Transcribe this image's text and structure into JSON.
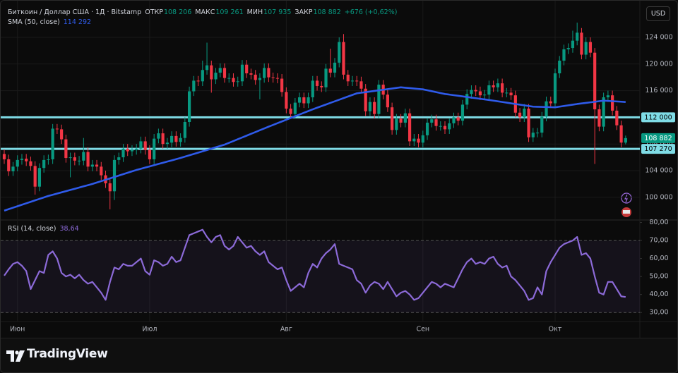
{
  "chart_data": [
    {
      "type": "candlestick",
      "title": "Биткоин / Доллар США · 1Д · Bitstamp",
      "currency": "USD",
      "ohlc_legend": [
        {
          "label": "ОТКР",
          "value": "108 206"
        },
        {
          "label": "МАКС",
          "value": "109 261"
        },
        {
          "label": "МИН",
          "value": "107 935"
        },
        {
          "label": "ЗАКР",
          "value": "108 882"
        }
      ],
      "change": "+676 (+0,62%)",
      "up_color": "#089981",
      "down_color": "#f23645",
      "categories": [
        null,
        null,
        null,
        "Июн",
        null,
        null,
        null,
        null,
        null,
        null,
        null,
        null,
        null,
        null,
        null,
        null,
        null,
        null,
        null,
        null,
        null,
        null,
        null,
        null,
        null,
        null,
        null,
        null,
        null,
        null,
        null,
        null,
        null,
        "Июл",
        null,
        null,
        null,
        null,
        null,
        null,
        null,
        null,
        null,
        null,
        null,
        null,
        null,
        null,
        null,
        null,
        null,
        null,
        null,
        null,
        null,
        null,
        null,
        null,
        null,
        null,
        null,
        null,
        null,
        null,
        "Авг",
        null,
        null,
        null,
        null,
        null,
        null,
        null,
        null,
        null,
        null,
        null,
        null,
        null,
        null,
        null,
        null,
        null,
        null,
        null,
        null,
        null,
        null,
        null,
        null,
        null,
        null,
        null,
        null,
        null,
        null,
        "Сен",
        null,
        null,
        null,
        null,
        null,
        null,
        null,
        null,
        null,
        null,
        null,
        null,
        null,
        null,
        null,
        null,
        null,
        null,
        null,
        null,
        null,
        null,
        null,
        null,
        null,
        null,
        null,
        null,
        null,
        "Окт",
        null,
        null,
        null,
        null,
        null,
        null,
        null,
        null,
        null,
        null,
        null,
        null,
        null,
        null,
        null,
        null
      ],
      "open": [
        106500,
        105700,
        103900,
        104600,
        105600,
        105800,
        105400,
        104700,
        101600,
        104400,
        105600,
        105700,
        110300,
        110200,
        108700,
        105900,
        106000,
        105500,
        105500,
        106800,
        104600,
        104900,
        104600,
        103300,
        102100,
        100900,
        105600,
        106000,
        107300,
        106900,
        107100,
        107300,
        108400,
        107100,
        105700,
        108800,
        109600,
        108000,
        108200,
        109200,
        108300,
        108900,
        111300,
        115900,
        117500,
        117400,
        119100,
        119800,
        117700,
        118700,
        119400,
        117900,
        117900,
        117300,
        117400,
        119900,
        118600,
        118400,
        117600,
        117900,
        119400,
        118000,
        117900,
        117800,
        115800,
        113300,
        112500,
        114200,
        115000,
        114100,
        115000,
        117500,
        116700,
        116500,
        119300,
        118700,
        120200,
        123300,
        118400,
        117400,
        117500,
        117400,
        116300,
        112900,
        114300,
        112500,
        116900,
        115400,
        113500,
        110100,
        111800,
        111200,
        112600,
        108400,
        108800,
        108200,
        109300,
        111200,
        111700,
        110700,
        110700,
        110200,
        111100,
        112000,
        111500,
        113900,
        115500,
        116100,
        115900,
        115300,
        115400,
        116800,
        116500,
        117100,
        115700,
        115700,
        115300,
        112700,
        112000,
        113300,
        109000,
        109700,
        109700,
        112100,
        114400,
        114100,
        118600,
        120500,
        122200,
        122400,
        123500,
        124700,
        121400,
        123300,
        121700,
        113200,
        110600,
        115000,
        115300,
        113000,
        110800,
        108206
      ],
      "high": [
        107200,
        106400,
        105300,
        106300,
        106500,
        106500,
        106100,
        105400,
        105100,
        106300,
        106400,
        111000,
        111000,
        110900,
        109400,
        106700,
        106700,
        106200,
        108900,
        107500,
        105600,
        105600,
        105300,
        104000,
        102800,
        106300,
        106700,
        108000,
        108000,
        107800,
        108000,
        109100,
        109100,
        107800,
        109500,
        110300,
        110300,
        108900,
        109900,
        109900,
        109600,
        112000,
        116600,
        118200,
        118200,
        120500,
        123200,
        120500,
        119400,
        120100,
        120100,
        118600,
        118600,
        118100,
        120600,
        120600,
        119300,
        119100,
        118600,
        120100,
        120100,
        118700,
        118600,
        118500,
        116500,
        114000,
        114900,
        115700,
        115700,
        115700,
        118200,
        118200,
        117400,
        120000,
        122300,
        120900,
        124000,
        124500,
        119100,
        118200,
        118200,
        118100,
        117000,
        115000,
        115000,
        117600,
        117600,
        116100,
        114200,
        112500,
        112500,
        113300,
        113300,
        109500,
        109500,
        110000,
        111900,
        112400,
        112400,
        111400,
        111400,
        111800,
        112700,
        112700,
        114600,
        116200,
        116800,
        116800,
        116600,
        116100,
        117500,
        117500,
        117800,
        117800,
        116400,
        116400,
        116000,
        113400,
        114000,
        114000,
        110400,
        110400,
        112800,
        115100,
        115100,
        119300,
        121200,
        122900,
        123100,
        125000,
        126200,
        125400,
        124000,
        124000,
        122400,
        113900,
        115700,
        116000,
        116000,
        113700,
        111500,
        109261
      ],
      "low": [
        105000,
        103200,
        103200,
        103900,
        104900,
        104700,
        104000,
        100400,
        100900,
        103700,
        104900,
        105000,
        109500,
        108000,
        105200,
        103000,
        104800,
        104800,
        104800,
        103900,
        103900,
        103900,
        102600,
        101400,
        98200,
        99600,
        104900,
        105300,
        106200,
        106200,
        106400,
        106600,
        106400,
        105000,
        105000,
        108100,
        107300,
        107300,
        107500,
        107600,
        107600,
        108200,
        110600,
        115200,
        116700,
        116700,
        118400,
        115700,
        117000,
        118000,
        117200,
        117200,
        116600,
        116600,
        116700,
        117900,
        117700,
        116900,
        114700,
        117200,
        117300,
        117200,
        117100,
        115100,
        112600,
        111800,
        111800,
        113500,
        113400,
        113400,
        114300,
        116000,
        115800,
        115800,
        118000,
        118000,
        119500,
        117700,
        116700,
        116700,
        116700,
        115600,
        112200,
        112200,
        111800,
        111800,
        114700,
        112800,
        109400,
        109400,
        110500,
        110500,
        107700,
        107700,
        107500,
        107500,
        108600,
        110500,
        110000,
        110000,
        109500,
        109500,
        110400,
        110800,
        110800,
        113200,
        114800,
        115200,
        114600,
        114600,
        114700,
        115800,
        115800,
        115000,
        115000,
        114600,
        112000,
        111300,
        111300,
        108300,
        108300,
        109000,
        109000,
        111400,
        113400,
        113400,
        117900,
        119800,
        121500,
        121700,
        122800,
        120700,
        120700,
        121000,
        105000,
        109900,
        109900,
        114300,
        112300,
        110100,
        107500,
        107935
      ],
      "close": [
        105700,
        103900,
        104600,
        105600,
        105800,
        105400,
        104700,
        101600,
        104400,
        105600,
        105700,
        110300,
        110200,
        108700,
        105900,
        106000,
        105500,
        105500,
        106800,
        104600,
        104900,
        104600,
        103300,
        102100,
        100900,
        105600,
        106000,
        107300,
        106900,
        107100,
        107300,
        108400,
        107100,
        105700,
        108800,
        109600,
        108000,
        108200,
        109200,
        108300,
        108900,
        111300,
        115900,
        117500,
        117400,
        119100,
        119800,
        117700,
        118700,
        119400,
        117900,
        117900,
        117300,
        117400,
        119900,
        118600,
        118400,
        117600,
        117900,
        119400,
        118000,
        117900,
        117800,
        115800,
        113300,
        112500,
        114200,
        115000,
        114100,
        115000,
        117500,
        116700,
        116500,
        119300,
        118700,
        120200,
        123300,
        118400,
        117400,
        117500,
        117400,
        116300,
        112900,
        114300,
        112500,
        116900,
        115400,
        113500,
        110100,
        111800,
        111200,
        112600,
        108400,
        108800,
        108200,
        109300,
        111200,
        111700,
        110700,
        110700,
        110200,
        111100,
        112000,
        111500,
        113900,
        115500,
        116100,
        115900,
        115300,
        115400,
        116800,
        116500,
        117100,
        115700,
        115700,
        115300,
        112700,
        112000,
        113300,
        109000,
        109700,
        109700,
        112100,
        114400,
        114100,
        118600,
        120500,
        122200,
        122400,
        123500,
        124700,
        121400,
        123300,
        121700,
        113200,
        110600,
        115000,
        115300,
        113000,
        110800,
        108206,
        108882
      ],
      "overlays": [
        {
          "name": "SMA (50, close)",
          "color": "#2f5bea",
          "value_label": "114 292",
          "values": [
            98000,
            98220,
            98440,
            98660,
            98880,
            99100,
            99320,
            99540,
            99760,
            99980,
            100200,
            100380,
            100560,
            100740,
            100920,
            101100,
            101280,
            101460,
            101640,
            101820,
            102000,
            102210,
            102420,
            102630,
            102840,
            103050,
            103260,
            103470,
            103680,
            103890,
            104100,
            104280,
            104460,
            104640,
            104820,
            105000,
            105180,
            105360,
            105540,
            105720,
            105900,
            106100,
            106300,
            106500,
            106700,
            106900,
            107100,
            107300,
            107500,
            107700,
            107900,
            108170,
            108440,
            108710,
            108980,
            109250,
            109520,
            109790,
            110060,
            110330,
            110600,
            110860,
            111120,
            111380,
            111640,
            111900,
            112160,
            112420,
            112680,
            112940,
            113200,
            113440,
            113680,
            113920,
            114160,
            114400,
            114640,
            114880,
            115120,
            115360,
            115600,
            115690,
            115780,
            115870,
            115960,
            116050,
            116140,
            116230,
            116320,
            116410,
            116500,
            116440,
            116380,
            116320,
            116260,
            116200,
            116060,
            115920,
            115780,
            115640,
            115500,
            115410,
            115320,
            115230,
            115140,
            115050,
            114960,
            114870,
            114780,
            114690,
            114600,
            114500,
            114400,
            114300,
            114200,
            114100,
            114000,
            113900,
            113800,
            113700,
            113600,
            113580,
            113560,
            113540,
            113520,
            113500,
            113600,
            113700,
            113800,
            113900,
            114000,
            114080,
            114160,
            114250,
            114330,
            114420,
            114500,
            114460,
            114420,
            114380,
            114340,
            114292
          ]
        }
      ],
      "hlines": [
        {
          "value": 112000,
          "label": "112 000",
          "color": "#7fdce6"
        },
        {
          "value": 107270,
          "label": "107 270",
          "color": "#7fdce6"
        }
      ],
      "price_tag": {
        "value": 108882,
        "label": "108 882"
      },
      "ylim": [
        96700,
        128650
      ],
      "yticks": [
        {
          "value": 100000,
          "label": "100 000"
        },
        {
          "value": 104000,
          "label": "104 000"
        },
        {
          "value": 108000,
          "label": "108 000"
        },
        {
          "value": 112000,
          "label": "112 000"
        },
        {
          "value": 116000,
          "label": "116 000"
        },
        {
          "value": 120000,
          "label": "120 000"
        },
        {
          "value": 124000,
          "label": "124 000"
        }
      ],
      "grid": true
    },
    {
      "type": "line",
      "title": "RSI (14, close)",
      "value_label": "38,64",
      "series": [
        {
          "name": "RSI (14, close)",
          "color": "#8c6ad8",
          "values": [
            50.5,
            54,
            57,
            58,
            56,
            53,
            43,
            48,
            53,
            52,
            62,
            64,
            60,
            52,
            50,
            51,
            49,
            51,
            48,
            46,
            47,
            44,
            41,
            37,
            47,
            55,
            54,
            57,
            56,
            56,
            58,
            60,
            53,
            51,
            59,
            58,
            56,
            57,
            61,
            58,
            59,
            66,
            73,
            74,
            75,
            76,
            72,
            69,
            72,
            73,
            67,
            65,
            67,
            72,
            69,
            66,
            67,
            64,
            62,
            64,
            58,
            56,
            54,
            55,
            48,
            42,
            44,
            46,
            44,
            52,
            57,
            55,
            60,
            63,
            65,
            68,
            57,
            56,
            55,
            54,
            48,
            46,
            41,
            45,
            47,
            46,
            43,
            47,
            43,
            39,
            41,
            42,
            40,
            37,
            38,
            41,
            44,
            47,
            46,
            44,
            46,
            45,
            44,
            49,
            54,
            58,
            60,
            57,
            58,
            57,
            60,
            61,
            57,
            55,
            56,
            50,
            48,
            45,
            42,
            37,
            38,
            44,
            40,
            53,
            58,
            62,
            66,
            68,
            69,
            70,
            72,
            62,
            63,
            60,
            50,
            41,
            40,
            47,
            47,
            43,
            39,
            38.64
          ]
        }
      ],
      "band": {
        "lower": 30,
        "upper": 70,
        "color": "#7e57c2"
      },
      "ylim": [
        25,
        81
      ],
      "yticks": [
        {
          "value": 30,
          "label": "30,00"
        },
        {
          "value": 40,
          "label": "40,00"
        },
        {
          "value": 50,
          "label": "50,00"
        },
        {
          "value": 60,
          "label": "60,00"
        },
        {
          "value": 70,
          "label": "70,00"
        },
        {
          "value": 80,
          "label": "80,00"
        }
      ]
    }
  ],
  "brand": "TradingView"
}
